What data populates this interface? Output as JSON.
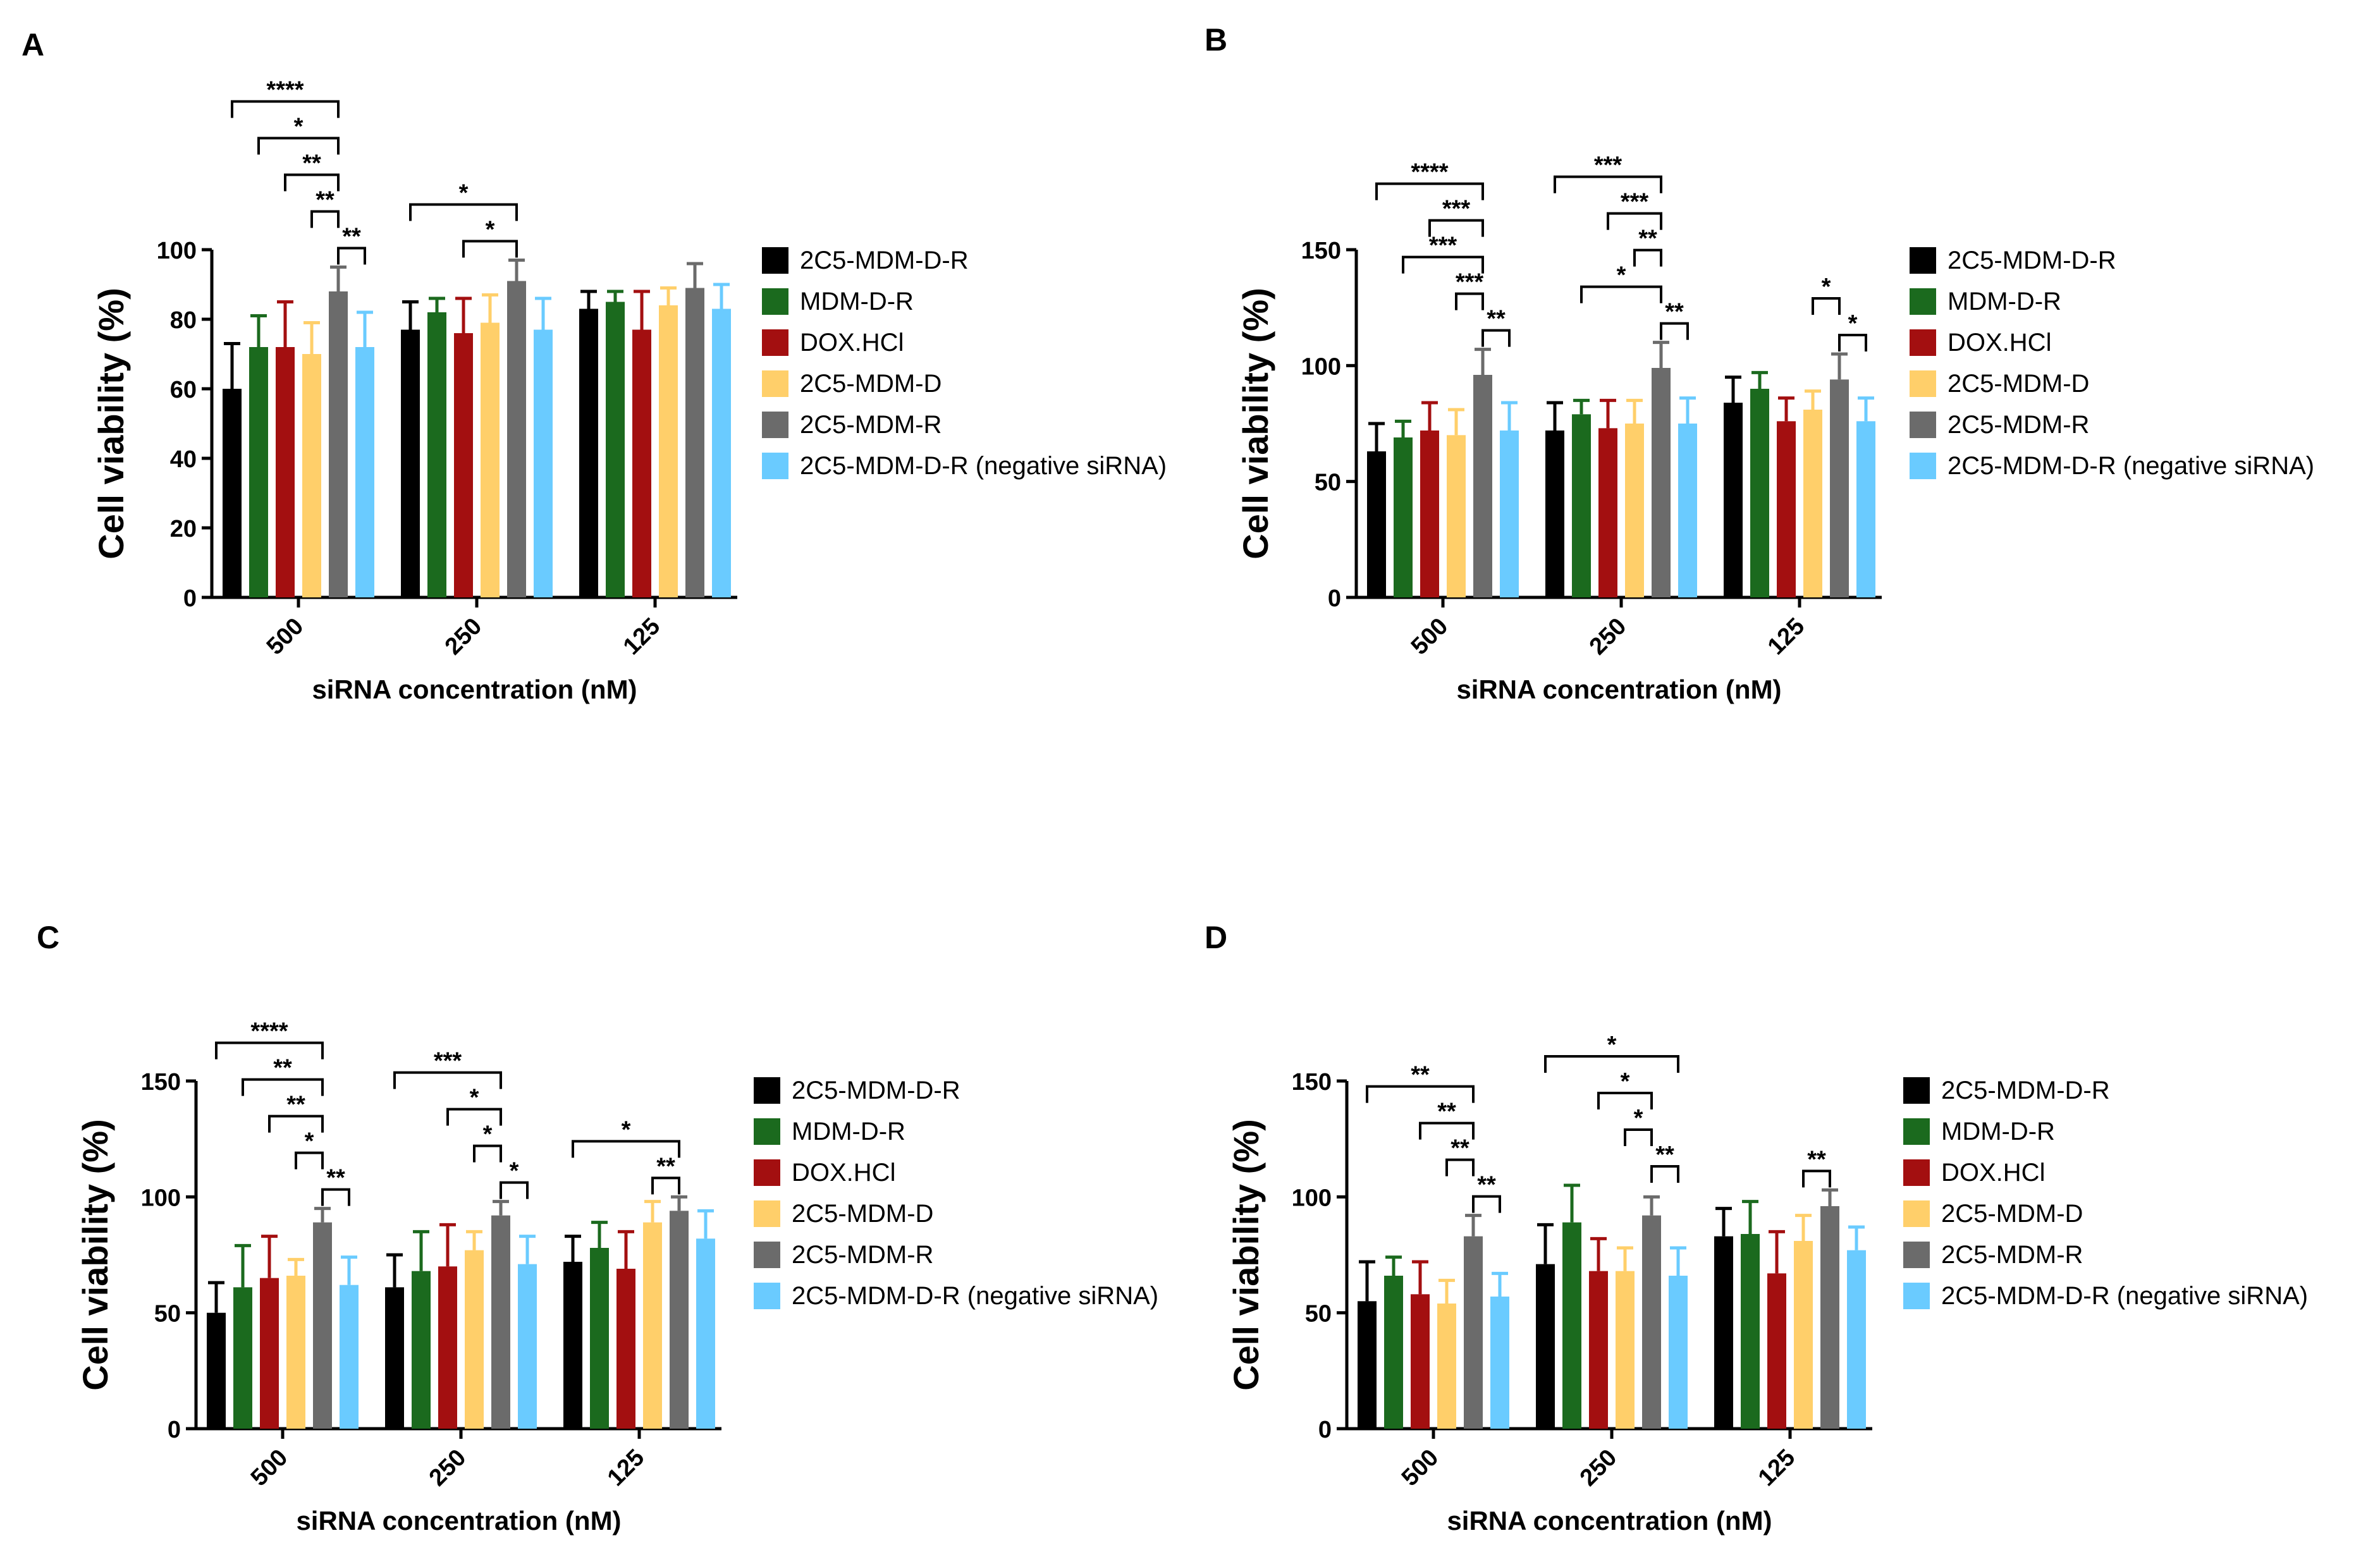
{
  "colors": {
    "2C5-MDM-D-R": "#000000",
    "MDM-D-R": "#1b6a1e",
    "DOX.HCl": "#a30f10",
    "2C5-MDM-D": "#ffcf6a",
    "2C5-MDM-R": "#6b6b6b",
    "2C5-MDM-D-R (negative siRNA)": "#6acbff"
  },
  "chart_data": [
    {
      "panel": "A",
      "type": "bar",
      "xlabel": "siRNA concentration (nM)",
      "ylabel": "Cell viability  (%)",
      "categories": [
        "500",
        "250",
        "125"
      ],
      "yticks": [
        0,
        20,
        40,
        60,
        80,
        100
      ],
      "ylim": [
        0,
        100
      ],
      "legend": {
        "placement": "right",
        "entries": [
          "2C5-MDM-D-R",
          "MDM-D-R",
          "DOX.HCl",
          "2C5-MDM-D",
          "2C5-MDM-R",
          "2C5-MDM-D-R (negative siRNA)"
        ]
      },
      "series": [
        {
          "name": "2C5-MDM-D-R",
          "values": [
            60,
            77,
            83
          ],
          "errors": [
            13,
            8,
            5
          ]
        },
        {
          "name": "MDM-D-R",
          "values": [
            72,
            82,
            85
          ],
          "errors": [
            9,
            4,
            3
          ]
        },
        {
          "name": "DOX.HCl",
          "values": [
            72,
            76,
            77
          ],
          "errors": [
            13,
            10,
            11
          ]
        },
        {
          "name": "2C5-MDM-D",
          "values": [
            70,
            79,
            84
          ],
          "errors": [
            9,
            8,
            5
          ]
        },
        {
          "name": "2C5-MDM-R",
          "values": [
            88,
            91,
            89
          ],
          "errors": [
            7,
            6,
            7
          ]
        },
        {
          "name": "2C5-MDM-D-R (negative siRNA)",
          "values": [
            72,
            77,
            83
          ],
          "errors": [
            10,
            9,
            7
          ]
        }
      ],
      "annotations": [
        {
          "label": "****",
          "from": [
            0,
            0
          ],
          "to": [
            0,
            4
          ]
        },
        {
          "label": "*",
          "from": [
            0,
            1
          ],
          "to": [
            0,
            4
          ]
        },
        {
          "label": "**",
          "from": [
            0,
            2
          ],
          "to": [
            0,
            4
          ]
        },
        {
          "label": "**",
          "from": [
            0,
            3
          ],
          "to": [
            0,
            4
          ]
        },
        {
          "label": "**",
          "from": [
            0,
            4
          ],
          "to": [
            0,
            5
          ]
        },
        {
          "label": "*",
          "from": [
            1,
            0
          ],
          "to": [
            1,
            4
          ]
        },
        {
          "label": "*",
          "from": [
            1,
            2
          ],
          "to": [
            1,
            4
          ]
        }
      ]
    },
    {
      "panel": "B",
      "type": "bar",
      "xlabel": "siRNA concentration (nM)",
      "ylabel": "Cell viability  (%)",
      "categories": [
        "500",
        "250",
        "125"
      ],
      "yticks": [
        0,
        50,
        100,
        150
      ],
      "ylim": [
        0,
        150
      ],
      "legend": {
        "placement": "right",
        "entries": [
          "2C5-MDM-D-R",
          "MDM-D-R",
          "DOX.HCl",
          "2C5-MDM-D",
          "2C5-MDM-R",
          "2C5-MDM-D-R (negative siRNA)"
        ]
      },
      "series": [
        {
          "name": "2C5-MDM-D-R",
          "values": [
            63,
            72,
            84
          ],
          "errors": [
            12,
            12,
            11
          ]
        },
        {
          "name": "MDM-D-R",
          "values": [
            69,
            79,
            90
          ],
          "errors": [
            7,
            6,
            7
          ]
        },
        {
          "name": "DOX.HCl",
          "values": [
            72,
            73,
            76
          ],
          "errors": [
            12,
            12,
            10
          ]
        },
        {
          "name": "2C5-MDM-D",
          "values": [
            70,
            75,
            81
          ],
          "errors": [
            11,
            10,
            8
          ]
        },
        {
          "name": "2C5-MDM-R",
          "values": [
            96,
            99,
            94
          ],
          "errors": [
            11,
            11,
            11
          ]
        },
        {
          "name": "2C5-MDM-D-R (negative siRNA)",
          "values": [
            72,
            75,
            76
          ],
          "errors": [
            12,
            11,
            10
          ]
        }
      ],
      "annotations": [
        {
          "label": "****",
          "from": [
            0,
            0
          ],
          "to": [
            0,
            4
          ]
        },
        {
          "label": "***",
          "from": [
            0,
            2
          ],
          "to": [
            0,
            4
          ]
        },
        {
          "label": "***",
          "from": [
            0,
            1
          ],
          "to": [
            0,
            4
          ]
        },
        {
          "label": "***",
          "from": [
            0,
            3
          ],
          "to": [
            0,
            4
          ]
        },
        {
          "label": "**",
          "from": [
            0,
            4
          ],
          "to": [
            0,
            5
          ]
        },
        {
          "label": "***",
          "from": [
            1,
            0
          ],
          "to": [
            1,
            4
          ]
        },
        {
          "label": "***",
          "from": [
            1,
            2
          ],
          "to": [
            1,
            4
          ]
        },
        {
          "label": "**",
          "from": [
            1,
            3
          ],
          "to": [
            1,
            4
          ]
        },
        {
          "label": "*",
          "from": [
            1,
            1
          ],
          "to": [
            1,
            4
          ]
        },
        {
          "label": "**",
          "from": [
            1,
            4
          ],
          "to": [
            1,
            5
          ]
        },
        {
          "label": "*",
          "from": [
            2,
            3
          ],
          "to": [
            2,
            4
          ]
        },
        {
          "label": "*",
          "from": [
            2,
            4
          ],
          "to": [
            2,
            5
          ]
        }
      ]
    },
    {
      "panel": "C",
      "type": "bar",
      "xlabel": "siRNA concentration (nM)",
      "ylabel": "Cell viability  (%)",
      "categories": [
        "500",
        "250",
        "125"
      ],
      "yticks": [
        0,
        50,
        100,
        150
      ],
      "ylim": [
        0,
        150
      ],
      "legend": {
        "placement": "right",
        "entries": [
          "2C5-MDM-D-R",
          "MDM-D-R",
          "DOX.HCl",
          "2C5-MDM-D",
          "2C5-MDM-R",
          "2C5-MDM-D-R (negative siRNA)"
        ]
      },
      "series": [
        {
          "name": "2C5-MDM-D-R",
          "values": [
            50,
            61,
            72
          ],
          "errors": [
            13,
            14,
            11
          ]
        },
        {
          "name": "MDM-D-R",
          "values": [
            61,
            68,
            78
          ],
          "errors": [
            18,
            17,
            11
          ]
        },
        {
          "name": "DOX.HCl",
          "values": [
            65,
            70,
            69
          ],
          "errors": [
            18,
            18,
            16
          ]
        },
        {
          "name": "2C5-MDM-D",
          "values": [
            66,
            77,
            89
          ],
          "errors": [
            7,
            8,
            9
          ]
        },
        {
          "name": "2C5-MDM-R",
          "values": [
            89,
            92,
            94
          ],
          "errors": [
            6,
            6,
            6
          ]
        },
        {
          "name": "2C5-MDM-D-R (negative siRNA)",
          "values": [
            62,
            71,
            82
          ],
          "errors": [
            12,
            12,
            12
          ]
        }
      ],
      "annotations": [
        {
          "label": "****",
          "from": [
            0,
            0
          ],
          "to": [
            0,
            4
          ]
        },
        {
          "label": "**",
          "from": [
            0,
            1
          ],
          "to": [
            0,
            4
          ]
        },
        {
          "label": "**",
          "from": [
            0,
            2
          ],
          "to": [
            0,
            4
          ]
        },
        {
          "label": "*",
          "from": [
            0,
            3
          ],
          "to": [
            0,
            4
          ]
        },
        {
          "label": "**",
          "from": [
            0,
            4
          ],
          "to": [
            0,
            5
          ]
        },
        {
          "label": "***",
          "from": [
            1,
            0
          ],
          "to": [
            1,
            4
          ]
        },
        {
          "label": "*",
          "from": [
            1,
            2
          ],
          "to": [
            1,
            4
          ]
        },
        {
          "label": "*",
          "from": [
            1,
            3
          ],
          "to": [
            1,
            4
          ]
        },
        {
          "label": "*",
          "from": [
            1,
            4
          ],
          "to": [
            1,
            5
          ]
        },
        {
          "label": "*",
          "from": [
            2,
            0
          ],
          "to": [
            2,
            4
          ]
        },
        {
          "label": "**",
          "from": [
            2,
            3
          ],
          "to": [
            2,
            4
          ]
        }
      ]
    },
    {
      "panel": "D",
      "type": "bar",
      "xlabel": "siRNA concentration (nM)",
      "ylabel": "Cell viability  (%)",
      "categories": [
        "500",
        "250",
        "125"
      ],
      "yticks": [
        0,
        50,
        100,
        150
      ],
      "ylim": [
        0,
        150
      ],
      "legend": {
        "placement": "right",
        "entries": [
          "2C5-MDM-D-R",
          "MDM-D-R",
          "DOX.HCl",
          "2C5-MDM-D",
          "2C5-MDM-R",
          "2C5-MDM-D-R (negative siRNA)"
        ]
      },
      "series": [
        {
          "name": "2C5-MDM-D-R",
          "values": [
            55,
            71,
            83
          ],
          "errors": [
            17,
            17,
            12
          ]
        },
        {
          "name": "MDM-D-R",
          "values": [
            66,
            89,
            84
          ],
          "errors": [
            8,
            16,
            14
          ]
        },
        {
          "name": "DOX.HCl",
          "values": [
            58,
            68,
            67
          ],
          "errors": [
            14,
            14,
            18
          ]
        },
        {
          "name": "2C5-MDM-D",
          "values": [
            54,
            68,
            81
          ],
          "errors": [
            10,
            10,
            11
          ]
        },
        {
          "name": "2C5-MDM-R",
          "values": [
            83,
            92,
            96
          ],
          "errors": [
            9,
            8,
            7
          ]
        },
        {
          "name": "2C5-MDM-D-R (negative siRNA)",
          "values": [
            57,
            66,
            77
          ],
          "errors": [
            10,
            12,
            10
          ]
        }
      ],
      "annotations": [
        {
          "label": "**",
          "from": [
            0,
            0
          ],
          "to": [
            0,
            4
          ]
        },
        {
          "label": "**",
          "from": [
            0,
            2
          ],
          "to": [
            0,
            4
          ]
        },
        {
          "label": "**",
          "from": [
            0,
            3
          ],
          "to": [
            0,
            4
          ]
        },
        {
          "label": "**",
          "from": [
            0,
            4
          ],
          "to": [
            0,
            5
          ]
        },
        {
          "label": "*",
          "from": [
            1,
            0
          ],
          "to": [
            1,
            5
          ]
        },
        {
          "label": "*",
          "from": [
            1,
            2
          ],
          "to": [
            1,
            4
          ]
        },
        {
          "label": "*",
          "from": [
            1,
            3
          ],
          "to": [
            1,
            4
          ]
        },
        {
          "label": "**",
          "from": [
            1,
            4
          ],
          "to": [
            1,
            5
          ]
        },
        {
          "label": "**",
          "from": [
            2,
            3
          ],
          "to": [
            2,
            4
          ]
        }
      ]
    }
  ]
}
